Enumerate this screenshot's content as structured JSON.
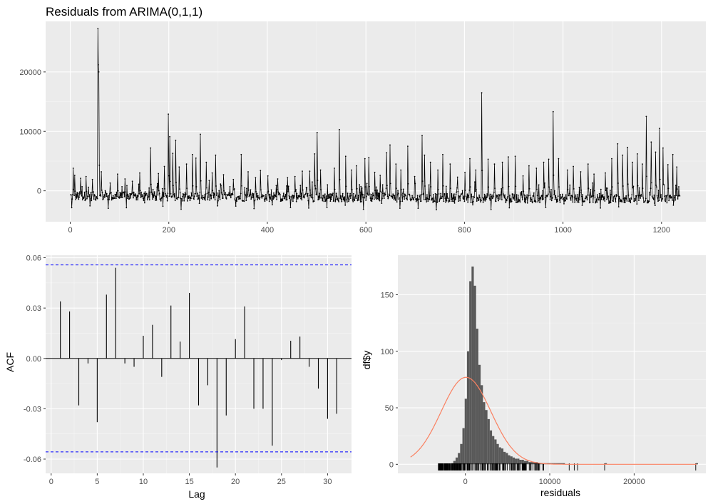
{
  "chart_data": [
    {
      "type": "line",
      "title": "Residuals from ARIMA(0,1,1)",
      "xlabel": "",
      "ylabel": "",
      "xlim": [
        -50,
        1290
      ],
      "ylim": [
        -5200,
        28500
      ],
      "x_ticks": [
        0,
        200,
        400,
        600,
        800,
        1000,
        1200
      ],
      "y_ticks": [
        0,
        10000,
        20000
      ],
      "x_tick_labels": [
        "0",
        "200",
        "400",
        "600",
        "800",
        "1000",
        "1200"
      ],
      "y_tick_labels": [
        "0",
        "10000",
        "20000"
      ],
      "n_obs": 1237,
      "grid": true,
      "peaks": [
        {
          "x": 5,
          "y": 3800
        },
        {
          "x": 8,
          "y": 2600
        },
        {
          "x": 20,
          "y": 2100
        },
        {
          "x": 31,
          "y": 2400
        },
        {
          "x": 44,
          "y": 1900
        },
        {
          "x": 55,
          "y": 27300
        },
        {
          "x": 56,
          "y": 21200
        },
        {
          "x": 57,
          "y": 20000
        },
        {
          "x": 62,
          "y": 3200
        },
        {
          "x": 80,
          "y": 1300
        },
        {
          "x": 95,
          "y": 2800
        },
        {
          "x": 110,
          "y": 2000
        },
        {
          "x": 125,
          "y": 1600
        },
        {
          "x": 140,
          "y": 3000
        },
        {
          "x": 150,
          "y": 2100
        },
        {
          "x": 162,
          "y": 7200
        },
        {
          "x": 178,
          "y": 2900
        },
        {
          "x": 190,
          "y": 4100
        },
        {
          "x": 198,
          "y": 12900
        },
        {
          "x": 201,
          "y": 9100
        },
        {
          "x": 207,
          "y": 6300
        },
        {
          "x": 213,
          "y": 8500
        },
        {
          "x": 220,
          "y": 4000
        },
        {
          "x": 235,
          "y": 4500
        },
        {
          "x": 247,
          "y": 6100
        },
        {
          "x": 254,
          "y": 5500
        },
        {
          "x": 263,
          "y": 9500
        },
        {
          "x": 275,
          "y": 4800
        },
        {
          "x": 287,
          "y": 3000
        },
        {
          "x": 294,
          "y": 6000
        },
        {
          "x": 310,
          "y": 2700
        },
        {
          "x": 330,
          "y": 1900
        },
        {
          "x": 346,
          "y": 6100
        },
        {
          "x": 360,
          "y": 3200
        },
        {
          "x": 375,
          "y": 2200
        },
        {
          "x": 385,
          "y": 3400
        },
        {
          "x": 400,
          "y": 2500
        },
        {
          "x": 420,
          "y": 2000
        },
        {
          "x": 440,
          "y": 2200
        },
        {
          "x": 455,
          "y": 2400
        },
        {
          "x": 470,
          "y": 3300
        },
        {
          "x": 485,
          "y": 3300
        },
        {
          "x": 495,
          "y": 6200
        },
        {
          "x": 500,
          "y": 9800
        },
        {
          "x": 507,
          "y": 3500
        },
        {
          "x": 520,
          "y": 6800
        },
        {
          "x": 535,
          "y": 3800
        },
        {
          "x": 545,
          "y": 10300
        },
        {
          "x": 558,
          "y": 5800
        },
        {
          "x": 570,
          "y": 3500
        },
        {
          "x": 580,
          "y": 4200
        },
        {
          "x": 597,
          "y": 5400
        },
        {
          "x": 605,
          "y": 5600
        },
        {
          "x": 617,
          "y": 3100
        },
        {
          "x": 628,
          "y": 2600
        },
        {
          "x": 641,
          "y": 6400
        },
        {
          "x": 648,
          "y": 7700
        },
        {
          "x": 660,
          "y": 4500
        },
        {
          "x": 670,
          "y": 3500
        },
        {
          "x": 684,
          "y": 7500
        },
        {
          "x": 698,
          "y": 2400
        },
        {
          "x": 713,
          "y": 9300
        },
        {
          "x": 718,
          "y": 6000
        },
        {
          "x": 730,
          "y": 4800
        },
        {
          "x": 745,
          "y": 3500
        },
        {
          "x": 755,
          "y": 6100
        },
        {
          "x": 770,
          "y": 4500
        },
        {
          "x": 785,
          "y": 2300
        },
        {
          "x": 800,
          "y": 3100
        },
        {
          "x": 810,
          "y": 5400
        },
        {
          "x": 822,
          "y": 3500
        },
        {
          "x": 834,
          "y": 16500
        },
        {
          "x": 847,
          "y": 5300
        },
        {
          "x": 860,
          "y": 4500
        },
        {
          "x": 876,
          "y": 4800
        },
        {
          "x": 888,
          "y": 5700
        },
        {
          "x": 902,
          "y": 5800
        },
        {
          "x": 918,
          "y": 2500
        },
        {
          "x": 930,
          "y": 4200
        },
        {
          "x": 945,
          "y": 3800
        },
        {
          "x": 960,
          "y": 4800
        },
        {
          "x": 970,
          "y": 5300
        },
        {
          "x": 979,
          "y": 13300
        },
        {
          "x": 990,
          "y": 5400
        },
        {
          "x": 1008,
          "y": 3500
        },
        {
          "x": 1020,
          "y": 4100
        },
        {
          "x": 1035,
          "y": 3200
        },
        {
          "x": 1050,
          "y": 4500
        },
        {
          "x": 1062,
          "y": 2800
        },
        {
          "x": 1075,
          "y": 3800
        },
        {
          "x": 1085,
          "y": 3000
        },
        {
          "x": 1098,
          "y": 5400
        },
        {
          "x": 1110,
          "y": 7900
        },
        {
          "x": 1120,
          "y": 6000
        },
        {
          "x": 1130,
          "y": 7300
        },
        {
          "x": 1140,
          "y": 4800
        },
        {
          "x": 1150,
          "y": 6200
        },
        {
          "x": 1160,
          "y": 4500
        },
        {
          "x": 1168,
          "y": 12500
        },
        {
          "x": 1178,
          "y": 8200
        },
        {
          "x": 1187,
          "y": 6500
        },
        {
          "x": 1195,
          "y": 10500
        },
        {
          "x": 1202,
          "y": 7200
        },
        {
          "x": 1212,
          "y": 4400
        },
        {
          "x": 1222,
          "y": 6100
        },
        {
          "x": 1230,
          "y": 4000
        }
      ]
    },
    {
      "type": "bar",
      "title": "",
      "xlabel": "Lag",
      "ylabel": "ACF",
      "xlim": [
        -0.6,
        32.6
      ],
      "ylim": [
        -0.0685,
        0.0615
      ],
      "x_ticks": [
        0,
        5,
        10,
        15,
        20,
        25,
        30
      ],
      "y_ticks": [
        -0.06,
        -0.03,
        0.0,
        0.03,
        0.06
      ],
      "x_tick_labels": [
        "0",
        "5",
        "10",
        "15",
        "20",
        "25",
        "30"
      ],
      "y_tick_labels": [
        "-0.06",
        "-0.03",
        "0.00",
        "0.03",
        "0.06"
      ],
      "conf_limit": 0.0557,
      "conf_color": "#0000ff",
      "lags": [
        1,
        2,
        3,
        4,
        5,
        6,
        7,
        8,
        9,
        10,
        11,
        12,
        13,
        14,
        15,
        16,
        17,
        18,
        19,
        20,
        21,
        22,
        23,
        24,
        25,
        26,
        27,
        28,
        29,
        30,
        31
      ],
      "acf": [
        0.034,
        0.028,
        -0.028,
        -0.003,
        -0.038,
        0.038,
        0.054,
        -0.003,
        -0.005,
        0.0135,
        0.02,
        -0.011,
        0.0315,
        0.01,
        0.039,
        -0.028,
        -0.016,
        -0.065,
        -0.034,
        0.0115,
        0.031,
        -0.03,
        -0.03,
        -0.052,
        -0.001,
        0.0105,
        0.013,
        -0.005,
        -0.018,
        -0.036,
        -0.033
      ],
      "grid": true
    },
    {
      "type": "bar",
      "title": "",
      "xlabel": "residuals",
      "ylabel": "df$y",
      "xlim": [
        -8000,
        28500
      ],
      "ylim": [
        -8,
        185
      ],
      "x_ticks": [
        0,
        10000,
        20000
      ],
      "y_ticks": [
        0,
        50,
        100,
        150
      ],
      "x_tick_labels": [
        "0",
        "10000",
        "20000"
      ],
      "y_tick_labels": [
        "0",
        "50",
        "100",
        "150"
      ],
      "bin_width": 270,
      "bins_start": -1700,
      "counts": [
        1,
        3,
        6,
        10,
        18,
        32,
        58,
        100,
        162,
        175,
        158,
        120,
        88,
        70,
        55,
        48,
        40,
        30,
        25,
        22,
        18,
        15,
        14,
        11,
        10,
        8,
        7,
        6,
        5,
        5,
        4,
        4,
        3,
        3,
        2,
        2,
        2,
        2,
        1,
        1,
        1,
        1,
        1,
        1,
        1,
        1,
        1,
        1,
        1,
        1
      ],
      "isolated_bins": [
        {
          "x": 16500,
          "count": 1
        },
        {
          "x": 27300,
          "count": 1
        }
      ],
      "bar_color": "#595959",
      "normal_curve": {
        "mean": 80,
        "sd": 2950,
        "peak": 77,
        "color": "#fa8060"
      },
      "rug_color": "#000000",
      "grid": true
    }
  ]
}
